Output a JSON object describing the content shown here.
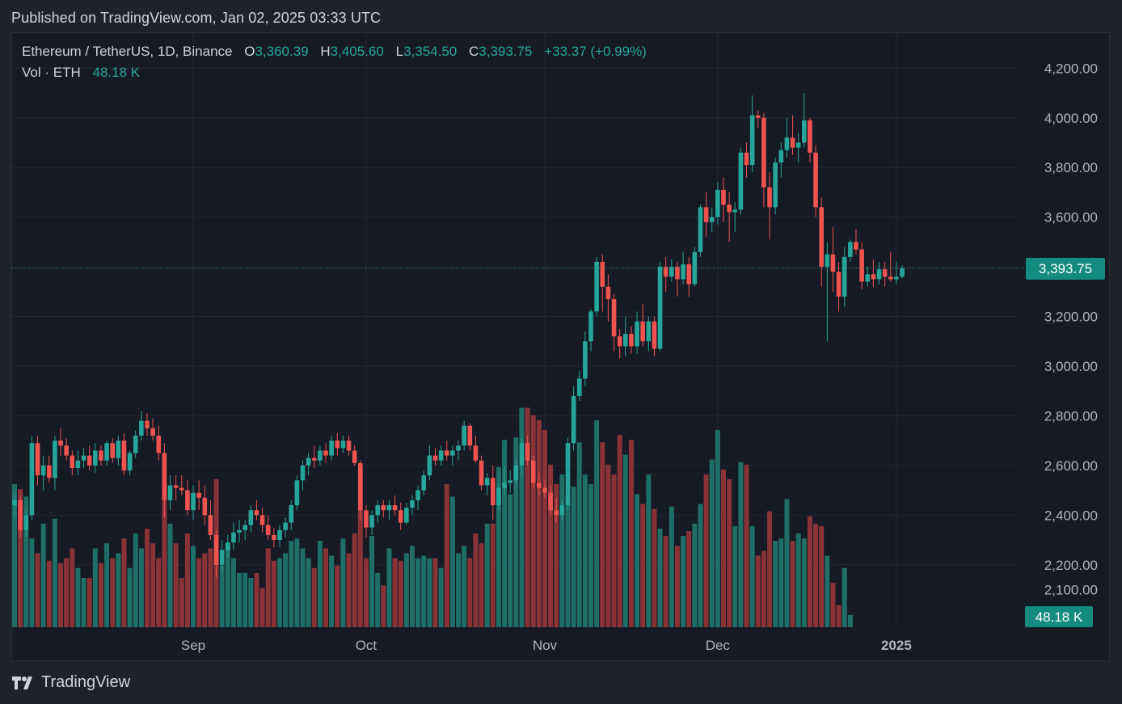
{
  "header": {
    "published": "Published on TradingView.com, Jan 02, 2025 03:33 UTC"
  },
  "legend": {
    "symbol": "Ethereum / TetherUS, 1D, Binance",
    "open_label": "O",
    "open": "3,360.39",
    "high_label": "H",
    "high": "3,405.60",
    "low_label": "L",
    "low": "3,354.50",
    "close_label": "C",
    "close": "3,393.75",
    "change": "+33.37 (+0.99%)",
    "volume_label": "Vol · ETH",
    "volume": "48.18 K"
  },
  "footer": {
    "brand": "TradingView"
  },
  "colors": {
    "up": "#26a69a",
    "down": "#ef5350",
    "background": "#161a25",
    "grid": "#232733",
    "text": "#d1d4dc"
  },
  "chart_data": {
    "type": "candlestick",
    "title": "",
    "y_axis": {
      "min": 2100,
      "max": 4300,
      "ticks": [
        "4,200.00",
        "4,000.00",
        "3,800.00",
        "3,600.00",
        "3,400.00",
        "3,200.00",
        "3,000.00",
        "2,800.00",
        "2,600.00",
        "2,400.00",
        "2,200.00",
        "2,100.00"
      ],
      "tick_values": [
        4200,
        4000,
        3800,
        3600,
        3400,
        3200,
        3000,
        2800,
        2600,
        2400,
        2200,
        2100
      ],
      "position": "right"
    },
    "x_axis": {
      "labels": [
        {
          "label": "Sep",
          "date": "2024-09-01"
        },
        {
          "label": "Oct",
          "date": "2024-10-01"
        },
        {
          "label": "Nov",
          "date": "2024-11-01"
        },
        {
          "label": "Dec",
          "date": "2024-12-01"
        },
        {
          "label": "2025",
          "date": "2025-01-01"
        }
      ]
    },
    "last_price_label": "3,393.75",
    "last_volume_label": "48.18 K",
    "start_date": "2024-08-01",
    "candles": [
      [
        2440,
        2490,
        2390,
        2460
      ],
      [
        2460,
        2480,
        2310,
        2340
      ],
      [
        2340,
        2420,
        2310,
        2400
      ],
      [
        2400,
        2720,
        2380,
        2690
      ],
      [
        2690,
        2720,
        2520,
        2560
      ],
      [
        2560,
        2640,
        2500,
        2600
      ],
      [
        2600,
        2640,
        2530,
        2550
      ],
      [
        2550,
        2720,
        2500,
        2700
      ],
      [
        2700,
        2750,
        2640,
        2680
      ],
      [
        2680,
        2710,
        2620,
        2640
      ],
      [
        2640,
        2660,
        2560,
        2590
      ],
      [
        2590,
        2660,
        2560,
        2620
      ],
      [
        2620,
        2670,
        2590,
        2640
      ],
      [
        2640,
        2680,
        2580,
        2600
      ],
      [
        2600,
        2690,
        2570,
        2660
      ],
      [
        2660,
        2680,
        2600,
        2620
      ],
      [
        2620,
        2700,
        2600,
        2690
      ],
      [
        2690,
        2710,
        2610,
        2630
      ],
      [
        2630,
        2720,
        2600,
        2700
      ],
      [
        2700,
        2730,
        2560,
        2580
      ],
      [
        2580,
        2660,
        2560,
        2650
      ],
      [
        2650,
        2740,
        2630,
        2720
      ],
      [
        2720,
        2820,
        2700,
        2780
      ],
      [
        2780,
        2810,
        2720,
        2750
      ],
      [
        2750,
        2790,
        2700,
        2720
      ],
      [
        2720,
        2760,
        2620,
        2650
      ],
      [
        2650,
        2690,
        2390,
        2460
      ],
      [
        2460,
        2560,
        2420,
        2520
      ],
      [
        2520,
        2560,
        2460,
        2510
      ],
      [
        2510,
        2560,
        2480,
        2500
      ],
      [
        2500,
        2540,
        2400,
        2420
      ],
      [
        2420,
        2520,
        2380,
        2490
      ],
      [
        2490,
        2540,
        2420,
        2470
      ],
      [
        2470,
        2520,
        2360,
        2400
      ],
      [
        2400,
        2460,
        2300,
        2320
      ],
      [
        2320,
        2340,
        2150,
        2200
      ],
      [
        2200,
        2300,
        2180,
        2260
      ],
      [
        2260,
        2320,
        2230,
        2290
      ],
      [
        2290,
        2370,
        2260,
        2330
      ],
      [
        2330,
        2380,
        2290,
        2340
      ],
      [
        2340,
        2380,
        2300,
        2360
      ],
      [
        2360,
        2440,
        2330,
        2420
      ],
      [
        2420,
        2460,
        2380,
        2400
      ],
      [
        2400,
        2430,
        2330,
        2360
      ],
      [
        2360,
        2400,
        2300,
        2320
      ],
      [
        2320,
        2350,
        2270,
        2300
      ],
      [
        2300,
        2360,
        2270,
        2340
      ],
      [
        2340,
        2390,
        2310,
        2370
      ],
      [
        2370,
        2460,
        2340,
        2440
      ],
      [
        2440,
        2560,
        2420,
        2540
      ],
      [
        2540,
        2620,
        2500,
        2600
      ],
      [
        2600,
        2650,
        2560,
        2630
      ],
      [
        2630,
        2680,
        2590,
        2620
      ],
      [
        2620,
        2680,
        2600,
        2660
      ],
      [
        2660,
        2690,
        2610,
        2640
      ],
      [
        2640,
        2720,
        2620,
        2700
      ],
      [
        2700,
        2730,
        2640,
        2670
      ],
      [
        2670,
        2720,
        2650,
        2700
      ],
      [
        2700,
        2720,
        2640,
        2660
      ],
      [
        2660,
        2680,
        2600,
        2610
      ],
      [
        2610,
        2620,
        2380,
        2420
      ],
      [
        2420,
        2440,
        2310,
        2350
      ],
      [
        2350,
        2420,
        2320,
        2400
      ],
      [
        2400,
        2460,
        2370,
        2440
      ],
      [
        2440,
        2460,
        2390,
        2420
      ],
      [
        2420,
        2460,
        2380,
        2440
      ],
      [
        2440,
        2480,
        2400,
        2420
      ],
      [
        2420,
        2450,
        2340,
        2370
      ],
      [
        2370,
        2450,
        2360,
        2430
      ],
      [
        2430,
        2480,
        2400,
        2460
      ],
      [
        2460,
        2520,
        2420,
        2500
      ],
      [
        2500,
        2580,
        2480,
        2560
      ],
      [
        2560,
        2680,
        2540,
        2640
      ],
      [
        2640,
        2670,
        2600,
        2620
      ],
      [
        2620,
        2680,
        2600,
        2660
      ],
      [
        2660,
        2700,
        2620,
        2640
      ],
      [
        2640,
        2680,
        2600,
        2660
      ],
      [
        2660,
        2700,
        2620,
        2680
      ],
      [
        2680,
        2780,
        2660,
        2760
      ],
      [
        2760,
        2770,
        2660,
        2680
      ],
      [
        2680,
        2720,
        2610,
        2620
      ],
      [
        2620,
        2640,
        2500,
        2520
      ],
      [
        2520,
        2570,
        2480,
        2550
      ],
      [
        2550,
        2600,
        2380,
        2440
      ],
      [
        2440,
        2530,
        2420,
        2510
      ],
      [
        2510,
        2600,
        2480,
        2530
      ],
      [
        2530,
        2580,
        2490,
        2540
      ],
      [
        2540,
        2620,
        2520,
        2600
      ],
      [
        2600,
        2710,
        2560,
        2690
      ],
      [
        2690,
        2720,
        2600,
        2620
      ],
      [
        2620,
        2640,
        2510,
        2530
      ],
      [
        2530,
        2570,
        2480,
        2510
      ],
      [
        2510,
        2540,
        2470,
        2490
      ],
      [
        2490,
        2520,
        2400,
        2420
      ],
      [
        2420,
        2470,
        2370,
        2400
      ],
      [
        2400,
        2460,
        2380,
        2440
      ],
      [
        2440,
        2710,
        2420,
        2690
      ],
      [
        2690,
        2920,
        2660,
        2880
      ],
      [
        2880,
        2980,
        2860,
        2950
      ],
      [
        2950,
        3140,
        2920,
        3100
      ],
      [
        3100,
        3230,
        3060,
        3220
      ],
      [
        3220,
        3440,
        3200,
        3420
      ],
      [
        3420,
        3450,
        3220,
        3320
      ],
      [
        3320,
        3370,
        3180,
        3270
      ],
      [
        3270,
        3290,
        3060,
        3120
      ],
      [
        3120,
        3150,
        3030,
        3080
      ],
      [
        3080,
        3200,
        3040,
        3130
      ],
      [
        3130,
        3160,
        3050,
        3080
      ],
      [
        3080,
        3220,
        3050,
        3180
      ],
      [
        3180,
        3250,
        3080,
        3100
      ],
      [
        3100,
        3200,
        3060,
        3180
      ],
      [
        3180,
        3200,
        3040,
        3070
      ],
      [
        3070,
        3420,
        3060,
        3400
      ],
      [
        3400,
        3440,
        3300,
        3360
      ],
      [
        3360,
        3430,
        3340,
        3400
      ],
      [
        3400,
        3420,
        3280,
        3350
      ],
      [
        3350,
        3460,
        3330,
        3410
      ],
      [
        3410,
        3440,
        3280,
        3330
      ],
      [
        3330,
        3480,
        3320,
        3460
      ],
      [
        3460,
        3650,
        3440,
        3640
      ],
      [
        3640,
        3700,
        3520,
        3580
      ],
      [
        3580,
        3640,
        3540,
        3600
      ],
      [
        3600,
        3740,
        3570,
        3710
      ],
      [
        3710,
        3760,
        3580,
        3650
      ],
      [
        3650,
        3700,
        3500,
        3620
      ],
      [
        3620,
        3660,
        3540,
        3630
      ],
      [
        3630,
        3880,
        3610,
        3860
      ],
      [
        3860,
        3900,
        3760,
        3810
      ],
      [
        3810,
        4090,
        3780,
        4010
      ],
      [
        4010,
        4030,
        3960,
        4000
      ],
      [
        4000,
        4020,
        3640,
        3720
      ],
      [
        3720,
        3780,
        3510,
        3640
      ],
      [
        3640,
        3840,
        3610,
        3820
      ],
      [
        3820,
        3900,
        3760,
        3870
      ],
      [
        3870,
        4000,
        3840,
        3920
      ],
      [
        3920,
        4010,
        3850,
        3880
      ],
      [
        3880,
        3940,
        3820,
        3900
      ],
      [
        3900,
        4100,
        3880,
        3990
      ],
      [
        3990,
        4000,
        3820,
        3860
      ],
      [
        3860,
        3890,
        3600,
        3640
      ],
      [
        3640,
        3680,
        3320,
        3400
      ],
      [
        3400,
        3500,
        3100,
        3450
      ],
      [
        3450,
        3560,
        3300,
        3380
      ],
      [
        3380,
        3420,
        3220,
        3280
      ],
      [
        3280,
        3480,
        3240,
        3440
      ],
      [
        3440,
        3510,
        3420,
        3500
      ],
      [
        3500,
        3550,
        3450,
        3470
      ],
      [
        3470,
        3500,
        3310,
        3340
      ],
      [
        3340,
        3400,
        3320,
        3370
      ],
      [
        3370,
        3430,
        3320,
        3350
      ],
      [
        3350,
        3420,
        3330,
        3390
      ],
      [
        3390,
        3420,
        3320,
        3360
      ],
      [
        3360,
        3460,
        3340,
        3350
      ],
      [
        3350,
        3420,
        3330,
        3360
      ],
      [
        3360,
        3406,
        3354,
        3394
      ]
    ],
    "volume": [
      290,
      280,
      265,
      180,
      150,
      210,
      135,
      220,
      130,
      140,
      160,
      120,
      100,
      100,
      160,
      130,
      170,
      140,
      150,
      180,
      120,
      190,
      160,
      200,
      170,
      140,
      300,
      210,
      170,
      100,
      190,
      165,
      140,
      150,
      160,
      300,
      125,
      170,
      140,
      110,
      110,
      100,
      110,
      80,
      160,
      135,
      140,
      150,
      175,
      180,
      160,
      140,
      120,
      175,
      160,
      145,
      125,
      180,
      150,
      190,
      320,
      140,
      185,
      110,
      85,
      160,
      140,
      135,
      150,
      165,
      140,
      145,
      140,
      140,
      120,
      290,
      265,
      150,
      165,
      140,
      190,
      170,
      210,
      210,
      325,
      380,
      270,
      385,
      445,
      445,
      430,
      420,
      400,
      330,
      290,
      310,
      270,
      285,
      375,
      310,
      290,
      420,
      375,
      330,
      310,
      390,
      350,
      380,
      270,
      250,
      310,
      240,
      200,
      185,
      245,
      165,
      185,
      195,
      210,
      250,
      310,
      340,
      400,
      320,
      300,
      205,
      335,
      330,
      205,
      145,
      155,
      235,
      175,
      180,
      260,
      175,
      190,
      180,
      225,
      210,
      205,
      145,
      90,
      45,
      120,
      25
    ]
  }
}
